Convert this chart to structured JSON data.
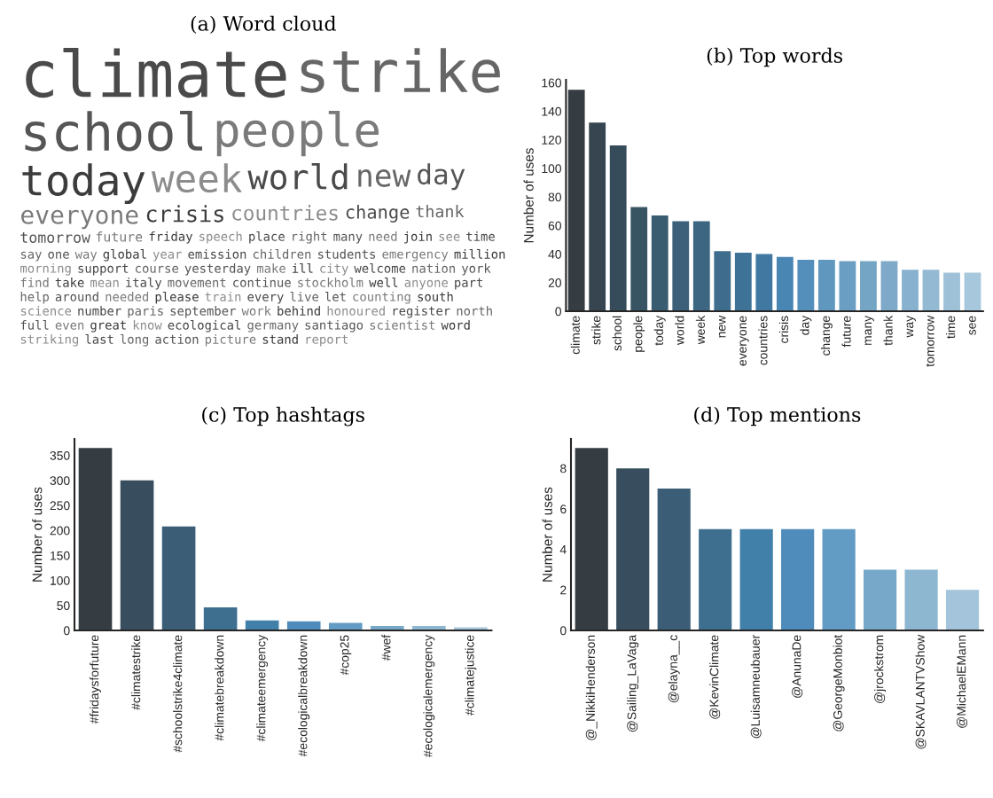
{
  "chart_data": [
    {
      "type": "other",
      "title": "(a) Word cloud",
      "annotations": [
        "climate",
        "strike",
        "school",
        "people",
        "today",
        "week",
        "world",
        "new",
        "day",
        "everyone",
        "crisis",
        "countries",
        "change",
        "thank",
        "tomorrow",
        "future",
        "friday",
        "speech",
        "place",
        "right",
        "many",
        "need",
        "join",
        "see",
        "time",
        "say",
        "one",
        "way",
        "global",
        "year",
        "emission",
        "children",
        "students",
        "emergency",
        "million",
        "morning",
        "support",
        "course",
        "yesterday",
        "make",
        "ill",
        "city",
        "welcome",
        "nation",
        "york",
        "find",
        "take",
        "mean",
        "italy",
        "movement",
        "continue",
        "stockholm",
        "well",
        "anyone",
        "part",
        "help",
        "around",
        "needed",
        "please",
        "train",
        "every",
        "live",
        "let",
        "counting",
        "south",
        "science",
        "number",
        "paris",
        "september",
        "work",
        "behind",
        "honoured",
        "register",
        "north",
        "full",
        "even",
        "great",
        "know",
        "ecological",
        "germany",
        "santiago",
        "scientist",
        "word",
        "striking",
        "last",
        "long",
        "action",
        "picture",
        "stand",
        "report"
      ]
    },
    {
      "type": "bar",
      "title": "(b) Top words",
      "ylabel": "Number of uses",
      "categories": [
        "climate",
        "strike",
        "school",
        "people",
        "today",
        "world",
        "week",
        "new",
        "everyone",
        "countries",
        "crisis",
        "day",
        "change",
        "future",
        "many",
        "thank",
        "way",
        "tomorrow",
        "time",
        "see"
      ],
      "values": [
        155,
        132,
        116,
        73,
        67,
        63,
        63,
        42,
        41,
        40,
        38,
        36,
        36,
        35,
        35,
        35,
        29,
        29,
        27,
        27
      ],
      "colors": [
        "#353c42",
        "#36454f",
        "#374c5a",
        "#385463",
        "#3a5c70",
        "#3c6079",
        "#3d6683",
        "#3e6c8d",
        "#3f7297",
        "#4078a2",
        "#4a86b4",
        "#548fbb",
        "#5f97bf",
        "#6a9fc3",
        "#74a5c5",
        "#7ea9c8",
        "#88b1cf",
        "#93b9d3",
        "#9fc1d8",
        "#a7c7dc"
      ],
      "ylim": [
        0,
        162
      ],
      "yticks": [
        0,
        20,
        40,
        60,
        80,
        100,
        120,
        140,
        160
      ],
      "grid": false,
      "legend": false
    },
    {
      "type": "bar",
      "title": "(c) Top hashtags",
      "ylabel": "Number of uses",
      "categories": [
        "#fridaysforfuture",
        "#climatestrike",
        "#schoolstrike4climate",
        "#climatebreakdown",
        "#climateemergency",
        "#ecologicalbreakdown",
        "#cop25",
        "#wef",
        "#ecologicalemergency",
        "#climatejustice"
      ],
      "values": [
        365,
        300,
        208,
        46,
        20,
        18,
        15,
        9,
        9,
        6
      ],
      "colors": [
        "#353c42",
        "#384d5d",
        "#3b5e76",
        "#3e6f8e",
        "#4180a9",
        "#4f8bbb",
        "#629bc3",
        "#77a8ca",
        "#8db6d1",
        "#a3c4da"
      ],
      "ylim": [
        0,
        383
      ],
      "yticks": [
        0,
        50,
        100,
        150,
        200,
        250,
        300,
        350
      ],
      "grid": false,
      "legend": false
    },
    {
      "type": "bar",
      "title": "(d) Top mentions",
      "ylabel": "Number of uses",
      "categories": [
        "@_NikkiHenderson",
        "@Sailing_LaVaga",
        "@elayna__c",
        "@KevinClimate",
        "@Luisamneubauer",
        "@AnunaDe",
        "@GeorgeMonbiot",
        "@jrockstrom",
        "@SKAVLANTVShow",
        "@MichaelEMann"
      ],
      "values": [
        9,
        8,
        7,
        5,
        5,
        5,
        5,
        3,
        3,
        2
      ],
      "colors": [
        "#353c42",
        "#384d5d",
        "#3b5e76",
        "#3e6f8e",
        "#4180a9",
        "#4f8bbb",
        "#629bc3",
        "#77a8ca",
        "#8db6d1",
        "#a3c4da"
      ],
      "ylim": [
        0,
        9.45
      ],
      "yticks": [
        0,
        2,
        4,
        6,
        8
      ],
      "grid": false,
      "legend": false
    }
  ]
}
